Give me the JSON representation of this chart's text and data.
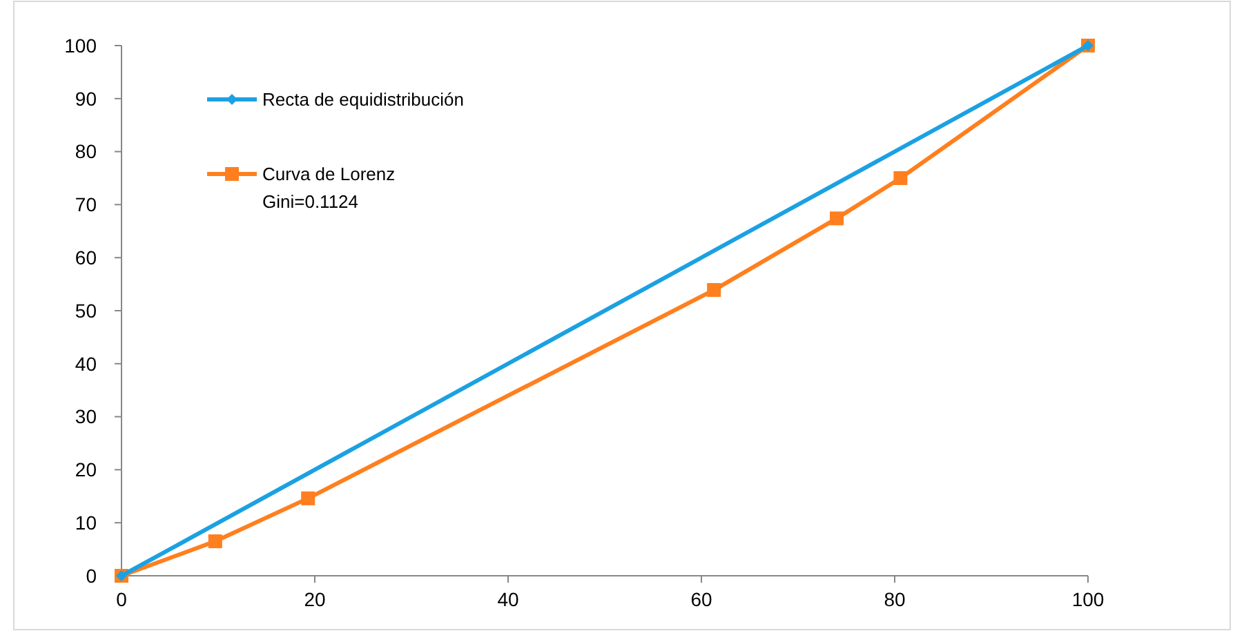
{
  "chart_data": {
    "type": "line",
    "xlim": [
      0,
      100
    ],
    "ylim": [
      0,
      100
    ],
    "xticks": [
      0,
      20,
      40,
      60,
      80,
      100
    ],
    "yticks": [
      0,
      10,
      20,
      30,
      40,
      50,
      60,
      70,
      80,
      90,
      100
    ],
    "grid": false,
    "legend": "top left",
    "annotations": [
      "Gini=0.1124"
    ],
    "series": [
      {
        "name": "Recta de equidistribución",
        "color": "#1ba1e2",
        "x": [
          0,
          100
        ],
        "values": [
          0,
          100
        ],
        "marker": "diamond"
      },
      {
        "name": "Curva de Lorenz",
        "color": "#ff7f1e",
        "x": [
          0,
          9.7,
          19.3,
          61.3,
          74,
          80.6,
          100
        ],
        "values": [
          0,
          6.5,
          14.6,
          53.9,
          67.4,
          75,
          100
        ],
        "marker": "square"
      }
    ]
  }
}
